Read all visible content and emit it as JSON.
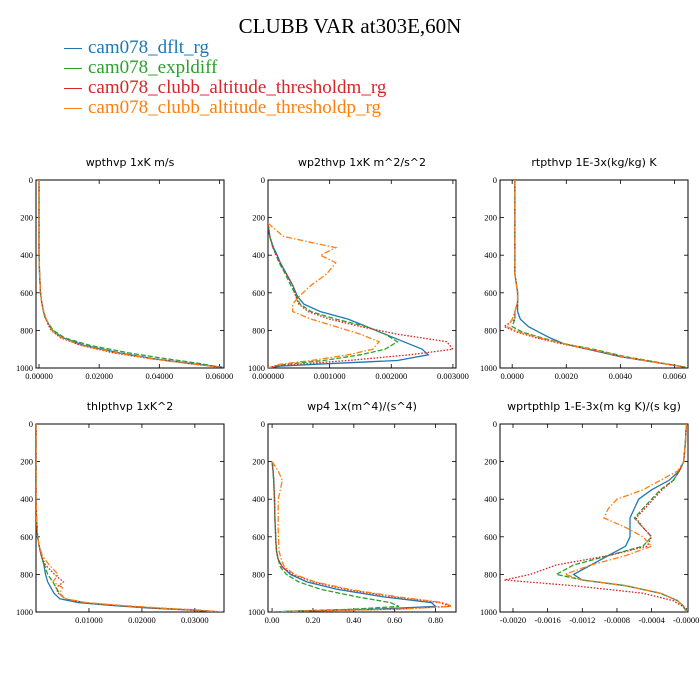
{
  "figure_title": "CLUBB VAR at303E,60N",
  "colors": {
    "blue": "#1f77b4",
    "green": "#2ca02c",
    "red": "#d62728",
    "orange": "#ff7f0e"
  },
  "legend": [
    {
      "label": "cam078_dflt_rg",
      "color": "#1f77b4",
      "style": "solid"
    },
    {
      "label": "cam078_expldiff",
      "color": "#2ca02c",
      "style": "dashed"
    },
    {
      "label": "cam078_clubb_altitude_thresholdm_rg",
      "color": "#d62728",
      "style": "dotted"
    },
    {
      "label": "cam078_clubb_altitude_thresholdp_rg",
      "color": "#ff7f0e",
      "style": "dashdot"
    }
  ],
  "chart_data": [
    {
      "type": "line",
      "title": "wpthvp   1xK m/s",
      "xlim": [
        -0.001,
        0.0615
      ],
      "ylim": [
        0,
        1000
      ],
      "y_inverted": true,
      "xticks": [
        "0.00000",
        "0.02000",
        "0.04000",
        "0.06000"
      ],
      "xtick_values": [
        0,
        0.02,
        0.04,
        0.06
      ],
      "yticks": [
        "0",
        "200",
        "400",
        "600",
        "800",
        "1000"
      ],
      "ytick_values": [
        0,
        200,
        400,
        600,
        800,
        1000
      ],
      "y": [
        0,
        100,
        200,
        300,
        400,
        500,
        600,
        650,
        700,
        730,
        760,
        800,
        840,
        880,
        920,
        950,
        975,
        995
      ],
      "series": [
        {
          "name": "cam078_dflt_rg",
          "values": [
            0,
            0,
            0,
            0,
            0,
            0.0002,
            0.0005,
            0.0009,
            0.0015,
            0.002,
            0.003,
            0.0045,
            0.008,
            0.015,
            0.027,
            0.038,
            0.05,
            0.061
          ]
        },
        {
          "name": "cam078_expldiff",
          "values": [
            0,
            0,
            0,
            0,
            0,
            0.0002,
            0.0005,
            0.0009,
            0.0015,
            0.0021,
            0.003,
            0.0048,
            0.0085,
            0.017,
            0.03,
            0.042,
            0.053,
            0.06
          ]
        },
        {
          "name": "cam078_clubb_altitude_thresholdm_rg",
          "values": [
            0,
            0,
            0,
            0,
            0,
            0.0002,
            0.0005,
            0.0009,
            0.0015,
            0.002,
            0.0028,
            0.004,
            0.0072,
            0.014,
            0.025,
            0.037,
            0.049,
            0.06
          ]
        },
        {
          "name": "cam078_clubb_altitude_thresholdp_rg",
          "values": [
            0,
            0,
            0,
            0,
            0,
            0.0002,
            0.0005,
            0.0009,
            0.0016,
            0.0022,
            0.003,
            0.0043,
            0.0076,
            0.014,
            0.026,
            0.037,
            0.049,
            0.06
          ]
        }
      ]
    },
    {
      "type": "line",
      "title": "wp2thvp   1xK m^2/s^2",
      "xlim": [
        0,
        0.00305
      ],
      "ylim": [
        0,
        1000
      ],
      "y_inverted": true,
      "xticks": [
        "0.000000",
        "0.001000",
        "0.002000",
        "0.003000"
      ],
      "xtick_values": [
        0,
        0.001,
        0.002,
        0.003
      ],
      "yticks": [
        "0",
        "200",
        "400",
        "600",
        "800",
        "1000"
      ],
      "ytick_values": [
        0,
        200,
        400,
        600,
        800,
        1000
      ],
      "y": [
        230,
        300,
        360,
        400,
        440,
        500,
        560,
        620,
        660,
        700,
        740,
        780,
        820,
        860,
        900,
        930,
        960,
        980,
        990,
        1000
      ],
      "series": [
        {
          "name": "cam078_dflt_rg",
          "values": [
            0,
            3e-05,
            9e-05,
            0.00015,
            0.0002,
            0.0003,
            0.0004,
            0.00048,
            0.00058,
            0.00085,
            0.0013,
            0.0016,
            0.0019,
            0.0022,
            0.0025,
            0.0026,
            0.0021,
            0.0008,
            0.0002,
            0
          ]
        },
        {
          "name": "cam078_expldiff",
          "values": [
            0,
            3e-05,
            8e-05,
            0.00013,
            0.00018,
            0.00028,
            0.00037,
            0.00046,
            0.00052,
            0.0007,
            0.0011,
            0.0016,
            0.0019,
            0.0021,
            0.0019,
            0.0015,
            0.0009,
            0.0003,
            0.0001,
            0
          ]
        },
        {
          "name": "cam078_clubb_altitude_thresholdm_rg",
          "values": [
            0,
            3e-05,
            8e-05,
            0.00014,
            0.00019,
            0.0003,
            0.0004,
            0.00045,
            0.0005,
            0.00065,
            0.001,
            0.0015,
            0.0021,
            0.0029,
            0.003,
            0.0023,
            0.0013,
            0.0005,
            0.0001,
            0
          ]
        },
        {
          "name": "cam078_clubb_altitude_thresholdp_rg",
          "values": [
            0,
            0.00025,
            0.0011,
            0.00085,
            0.0011,
            0.00095,
            0.0007,
            0.0005,
            0.0004,
            0.0004,
            0.0007,
            0.0011,
            0.0015,
            0.0018,
            0.0017,
            0.0013,
            0.0007,
            0.0002,
            0.0001,
            0
          ]
        }
      ]
    },
    {
      "type": "line",
      "title": "rtpthvp   1E-3x(kg/kg) K",
      "xlim": [
        -0.00045,
        0.0065
      ],
      "ylim": [
        0,
        1000
      ],
      "y_inverted": true,
      "xticks": [
        "0.0000",
        "0.0020",
        "0.0040",
        "0.0060"
      ],
      "xtick_values": [
        0,
        0.002,
        0.004,
        0.006
      ],
      "yticks": [
        "0",
        "200",
        "400",
        "600",
        "800",
        "1000"
      ],
      "ytick_values": [
        0,
        200,
        400,
        600,
        800,
        1000
      ],
      "y": [
        0,
        100,
        200,
        300,
        400,
        500,
        600,
        650,
        700,
        740,
        780,
        810,
        840,
        870,
        900,
        940,
        970,
        995
      ],
      "series": [
        {
          "name": "cam078_dflt_rg",
          "values": [
            0.0001,
            0.0001,
            0.0001,
            0.0001,
            0.0001,
            0.0001,
            0.0002,
            0.0002,
            0.0002,
            0.0003,
            0.0006,
            0.001,
            0.0014,
            0.0019,
            0.0028,
            0.004,
            0.0053,
            0.0064
          ]
        },
        {
          "name": "cam078_expldiff",
          "values": [
            0.0001,
            0.0001,
            0.0001,
            0.0001,
            0.0001,
            0.0001,
            0.0002,
            0.0002,
            0.0001,
            0.0001,
            0,
            0.0004,
            0.0011,
            0.0019,
            0.003,
            0.0042,
            0.0054,
            0.0064
          ]
        },
        {
          "name": "cam078_clubb_altitude_thresholdm_rg",
          "values": [
            0.0001,
            0.0001,
            0.0001,
            0.0001,
            0.0001,
            0.0001,
            0.0002,
            0.0002,
            0.0001,
            0.0001,
            -0.0003,
            0.0002,
            0.0009,
            0.0018,
            0.0028,
            0.0041,
            0.0053,
            0.0064
          ]
        },
        {
          "name": "cam078_clubb_altitude_thresholdp_rg",
          "values": [
            0.0001,
            0.0001,
            0.0001,
            0.0001,
            0.0001,
            0.0001,
            0.0002,
            0.0002,
            0.0001,
            0,
            -0.0002,
            0.0003,
            0.001,
            0.0019,
            0.0029,
            0.0041,
            0.0053,
            0.0064
          ]
        }
      ]
    },
    {
      "type": "line",
      "title": "thlpthvp   1xK^2",
      "xlim": [
        0,
        0.0355
      ],
      "ylim": [
        0,
        1000
      ],
      "y_inverted": true,
      "xticks": [
        "0.01000",
        "0.02000",
        "0.03000"
      ],
      "xtick_values": [
        0.01,
        0.02,
        0.03
      ],
      "yticks": [
        "0",
        "200",
        "400",
        "600",
        "800",
        "1000"
      ],
      "ytick_values": [
        0,
        200,
        400,
        600,
        800,
        1000
      ],
      "y": [
        0,
        100,
        200,
        300,
        400,
        500,
        600,
        650,
        700,
        750,
        800,
        840,
        870,
        900,
        930,
        950,
        965,
        980,
        990,
        1000
      ],
      "series": [
        {
          "name": "cam078_dflt_rg",
          "values": [
            0,
            0,
            0,
            0,
            0,
            0.0001,
            0.0003,
            0.0006,
            0.001,
            0.0015,
            0.0018,
            0.0022,
            0.0028,
            0.0034,
            0.0045,
            0.008,
            0.014,
            0.022,
            0.03,
            0.035
          ]
        },
        {
          "name": "cam078_expldiff",
          "values": [
            0,
            0,
            0,
            0,
            0,
            0.0001,
            0.0003,
            0.0006,
            0.001,
            0.0016,
            0.0022,
            0.0032,
            0.0038,
            0.0044,
            0.0055,
            0.009,
            0.015,
            0.023,
            0.03,
            0.034
          ]
        },
        {
          "name": "cam078_clubb_altitude_thresholdm_rg",
          "values": [
            0,
            0,
            0,
            0,
            0,
            0.0001,
            0.0003,
            0.0006,
            0.001,
            0.0018,
            0.0035,
            0.0052,
            0.0038,
            0.0042,
            0.0055,
            0.009,
            0.015,
            0.022,
            0.029,
            0.034
          ]
        },
        {
          "name": "cam078_clubb_altitude_thresholdp_rg",
          "values": [
            0,
            0,
            0,
            0,
            0,
            0.0001,
            0.0003,
            0.0006,
            0.0012,
            0.0025,
            0.0042,
            0.0032,
            0.005,
            0.0045,
            0.0055,
            0.0095,
            0.016,
            0.024,
            0.031,
            0.035
          ]
        }
      ]
    },
    {
      "type": "line",
      "title": "wp4   1x(m^4)/(s^4)",
      "xlim": [
        -0.02,
        0.9
      ],
      "ylim": [
        0,
        1000
      ],
      "y_inverted": true,
      "xticks": [
        "0.00",
        "0.20",
        "0.40",
        "0.60",
        "0.80"
      ],
      "xtick_values": [
        0,
        0.2,
        0.4,
        0.6,
        0.8
      ],
      "yticks": [
        "0",
        "200",
        "400",
        "600",
        "800",
        "1000"
      ],
      "ytick_values": [
        0,
        200,
        400,
        600,
        800,
        1000
      ],
      "y": [
        200,
        250,
        300,
        350,
        400,
        450,
        500,
        560,
        620,
        680,
        720,
        760,
        800,
        840,
        880,
        920,
        950,
        970,
        985,
        995,
        1000
      ],
      "series": [
        {
          "name": "cam078_dflt_rg",
          "values": [
            0,
            0.005,
            0.008,
            0.01,
            0.012,
            0.013,
            0.014,
            0.016,
            0.018,
            0.022,
            0.03,
            0.05,
            0.09,
            0.17,
            0.32,
            0.55,
            0.78,
            0.8,
            0.5,
            0.1,
            0
          ]
        },
        {
          "name": "cam078_expldiff",
          "values": [
            0,
            0.005,
            0.008,
            0.01,
            0.012,
            0.013,
            0.014,
            0.016,
            0.018,
            0.022,
            0.03,
            0.04,
            0.07,
            0.13,
            0.24,
            0.42,
            0.58,
            0.62,
            0.4,
            0.1,
            0
          ]
        },
        {
          "name": "cam078_clubb_altitude_thresholdm_rg",
          "values": [
            0,
            0.005,
            0.008,
            0.01,
            0.012,
            0.013,
            0.014,
            0.016,
            0.018,
            0.022,
            0.03,
            0.05,
            0.1,
            0.2,
            0.36,
            0.6,
            0.82,
            0.87,
            0.6,
            0.15,
            0
          ]
        },
        {
          "name": "cam078_clubb_altitude_thresholdp_rg",
          "values": [
            0,
            0.03,
            0.05,
            0.04,
            0.03,
            0.03,
            0.03,
            0.03,
            0.032,
            0.035,
            0.045,
            0.06,
            0.11,
            0.21,
            0.38,
            0.62,
            0.84,
            0.88,
            0.62,
            0.15,
            0
          ]
        }
      ]
    },
    {
      "type": "line",
      "title": "wprtpthlp   1-E-3x(m kg K)/(s kg)",
      "xlim": [
        -0.00215,
        2e-05
      ],
      "ylim": [
        0,
        1000
      ],
      "y_inverted": true,
      "xticks": [
        "-0.0020",
        "-0.0016",
        "-0.0012",
        "-0.0008",
        "-0.0004",
        "-0.0000"
      ],
      "xtick_values": [
        -0.002,
        -0.0016,
        -0.0012,
        -0.0008,
        -0.0004,
        0
      ],
      "yticks": [
        "0",
        "200",
        "400",
        "600",
        "800",
        "1000"
      ],
      "ytick_values": [
        0,
        200,
        400,
        600,
        800,
        1000
      ],
      "y": [
        0,
        100,
        200,
        250,
        300,
        350,
        400,
        450,
        500,
        550,
        600,
        650,
        700,
        750,
        800,
        830,
        860,
        900,
        940,
        970,
        990,
        1000
      ],
      "series": [
        {
          "name": "cam078_dflt_rg",
          "values": [
            0,
            -1e-05,
            -3e-05,
            -8e-05,
            -0.0002,
            -0.0004,
            -0.00055,
            -0.0006,
            -0.00065,
            -0.00065,
            -0.00065,
            -0.0007,
            -0.0009,
            -0.0011,
            -0.0013,
            -0.0012,
            -0.0007,
            -0.0003,
            -0.0001,
            -3e-05,
            -1e-05,
            0
          ]
        },
        {
          "name": "cam078_expldiff",
          "values": [
            0,
            -1e-05,
            -3e-05,
            -8e-05,
            -0.00015,
            -0.0003,
            -0.0004,
            -0.0005,
            -0.0006,
            -0.0005,
            -0.0004,
            -0.0005,
            -0.0009,
            -0.0013,
            -0.0015,
            -0.0012,
            -0.0007,
            -0.0003,
            -0.0001,
            -3e-05,
            -1e-05,
            0
          ]
        },
        {
          "name": "cam078_clubb_altitude_thresholdm_rg",
          "values": [
            0,
            -1e-05,
            -3e-05,
            -8e-05,
            -0.00015,
            -0.00028,
            -0.00038,
            -0.00048,
            -0.00058,
            -0.0005,
            -0.0004,
            -0.00045,
            -0.0009,
            -0.0015,
            -0.0018,
            -0.0021,
            -0.0013,
            -0.0005,
            -0.00015,
            -4e-05,
            -1e-05,
            0
          ]
        },
        {
          "name": "cam078_clubb_altitude_thresholdp_rg",
          "values": [
            0,
            -1e-05,
            -3e-05,
            -0.0001,
            -0.0003,
            -0.0005,
            -0.0008,
            -0.0009,
            -0.00095,
            -0.0007,
            -0.0005,
            -0.0004,
            -0.0007,
            -0.0011,
            -0.0014,
            -0.0012,
            -0.0007,
            -0.0003,
            -0.0001,
            -3e-05,
            -1e-05,
            0
          ]
        }
      ]
    }
  ]
}
